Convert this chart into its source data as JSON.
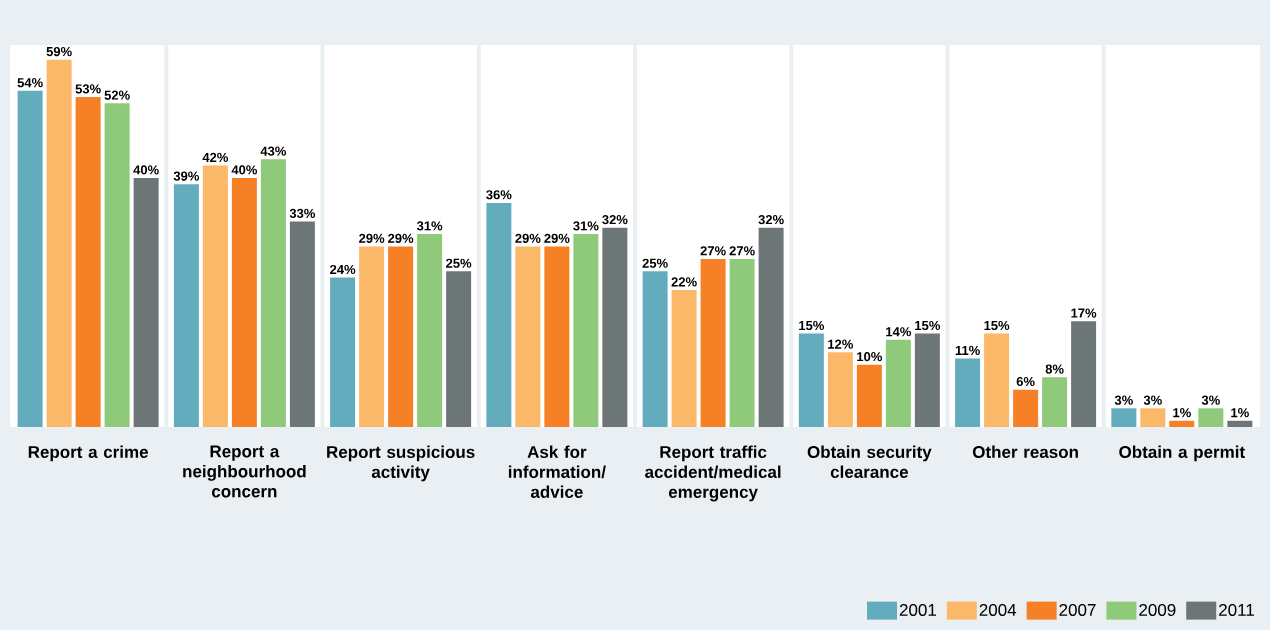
{
  "chart_data": {
    "type": "bar",
    "categories": [
      "Report a crime",
      "Report a neighbourhood concern",
      "Report suspicious activity",
      "Ask for information/ advice",
      "Report traffic accident/medical emergency",
      "Obtain security clearance",
      "Other reason",
      "Obtain a permit"
    ],
    "series": [
      {
        "name": "2001",
        "color": "#63acbe",
        "values": [
          54,
          39,
          24,
          36,
          25,
          15,
          11,
          3
        ],
        "value_labels": [
          "54%",
          "39%",
          "24%",
          "36%",
          "25%",
          "15%",
          "11%",
          "3%"
        ]
      },
      {
        "name": "2004",
        "color": "#fbb868",
        "values": [
          59,
          42,
          29,
          29,
          22,
          12,
          15,
          3
        ],
        "value_labels": [
          "59%",
          "42%",
          "29%",
          "29%",
          "22%",
          "12%",
          "15%",
          "3%"
        ]
      },
      {
        "name": "2007",
        "color": "#f58025",
        "values": [
          53,
          40,
          29,
          29,
          27,
          10,
          6,
          1
        ],
        "value_labels": [
          "53%",
          "40%",
          "29%",
          "29%",
          "27%",
          "10%",
          "6%",
          "1%"
        ]
      },
      {
        "name": "2009",
        "color": "#8fca7a",
        "values": [
          52,
          43,
          31,
          31,
          27,
          14,
          8,
          3
        ],
        "value_labels": [
          "52%",
          "43%",
          "31%",
          "31%",
          "27%",
          "14%",
          "8%",
          "3%"
        ]
      },
      {
        "name": "2011",
        "color": "#6d7677",
        "values": [
          40,
          33,
          25,
          32,
          32,
          15,
          17,
          1
        ],
        "value_labels": [
          "40%",
          "33%",
          "25%",
          "32%",
          "32%",
          "15%",
          "17%",
          "1%"
        ]
      }
    ],
    "legend": "bottom right",
    "tick_labels": "x"
  }
}
